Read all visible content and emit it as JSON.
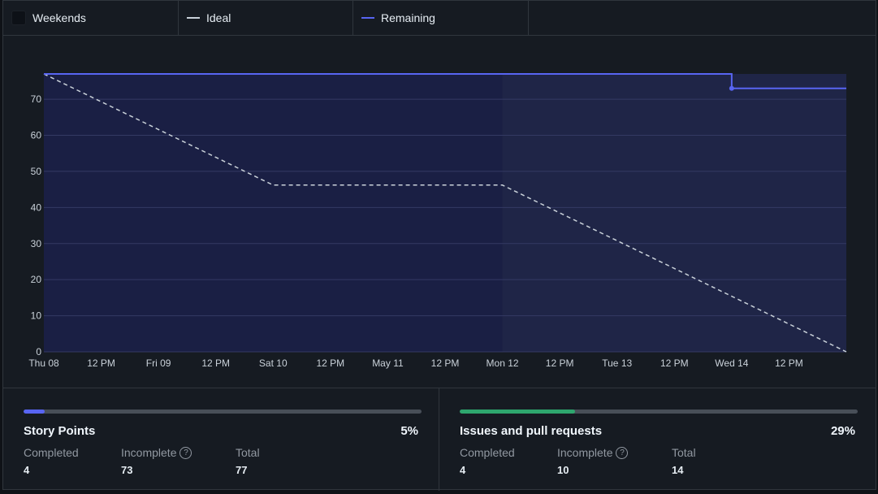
{
  "legend": {
    "weekends": "Weekends",
    "ideal": "Ideal",
    "remaining": "Remaining"
  },
  "colors": {
    "remaining": "#5865f2",
    "ideal": "#c9d1d9",
    "plot_bg": "#1f2547",
    "weekend_bg": "#1a1f44",
    "story_points_bar": "#5865f2",
    "issues_bar": "#2ea66e"
  },
  "chart_data": {
    "type": "line",
    "x_ticks": [
      "Thu 08",
      "12 PM",
      "Fri 09",
      "12 PM",
      "Sat 10",
      "12 PM",
      "May 11",
      "12 PM",
      "Mon 12",
      "12 PM",
      "Tue 13",
      "12 PM",
      "Wed 14",
      "12 PM"
    ],
    "y_ticks": [
      0,
      10,
      20,
      30,
      40,
      50,
      60,
      70
    ],
    "ylim": [
      0,
      77
    ],
    "x_range_hours": [
      0,
      168
    ],
    "weekend_range_hours": [
      0,
      96
    ],
    "series": [
      {
        "name": "Ideal",
        "style": "dashed",
        "points": [
          [
            0,
            77
          ],
          [
            48,
            46.2
          ],
          [
            96,
            46.2
          ],
          [
            168,
            0
          ]
        ]
      },
      {
        "name": "Remaining",
        "style": "step",
        "points": [
          [
            0,
            77
          ],
          [
            144,
            77
          ],
          [
            144,
            73
          ],
          [
            168,
            73
          ]
        ],
        "markers": [
          [
            144,
            73
          ]
        ]
      }
    ]
  },
  "stats": {
    "story_points": {
      "title": "Story Points",
      "percent": "5%",
      "fraction": 0.05,
      "completed_label": "Completed",
      "completed": "4",
      "incomplete_label": "Incomplete",
      "incomplete": "73",
      "total_label": "Total",
      "total": "77"
    },
    "issues": {
      "title": "Issues and pull requests",
      "percent": "29%",
      "fraction": 0.29,
      "completed_label": "Completed",
      "completed": "4",
      "incomplete_label": "Incomplete",
      "incomplete": "10",
      "total_label": "Total",
      "total": "14"
    }
  }
}
